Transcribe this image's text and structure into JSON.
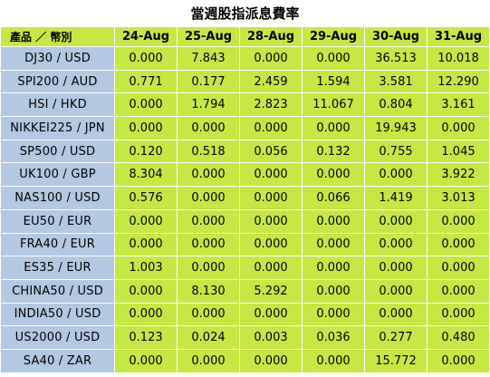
{
  "title": "當週股指派息費率",
  "table": {
    "product_header": "產品 ／ 幣別",
    "dates": [
      "24-Aug",
      "25-Aug",
      "28-Aug",
      "29-Aug",
      "30-Aug",
      "31-Aug"
    ],
    "rows": [
      {
        "product": "DJ30 / USD",
        "values": [
          "0.000",
          "7.843",
          "0.000",
          "0.000",
          "36.513",
          "10.018"
        ]
      },
      {
        "product": "SPI200 / AUD",
        "values": [
          "0.771",
          "0.177",
          "2.459",
          "1.594",
          "3.581",
          "12.290"
        ]
      },
      {
        "product": "HSI / HKD",
        "values": [
          "0.000",
          "1.794",
          "2.823",
          "11.067",
          "0.804",
          "3.161"
        ]
      },
      {
        "product": "NIKKEI225 / JPN",
        "values": [
          "0.000",
          "0.000",
          "0.000",
          "0.000",
          "19.943",
          "0.000"
        ]
      },
      {
        "product": "SP500 / USD",
        "values": [
          "0.120",
          "0.518",
          "0.056",
          "0.132",
          "0.755",
          "1.045"
        ]
      },
      {
        "product": "UK100 / GBP",
        "values": [
          "8.304",
          "0.000",
          "0.000",
          "0.000",
          "0.000",
          "3.922"
        ]
      },
      {
        "product": "NAS100 / USD",
        "values": [
          "0.576",
          "0.000",
          "0.000",
          "0.066",
          "1.419",
          "3.013"
        ]
      },
      {
        "product": "EU50 / EUR",
        "values": [
          "0.000",
          "0.000",
          "0.000",
          "0.000",
          "0.000",
          "0.000"
        ]
      },
      {
        "product": "FRA40 / EUR",
        "values": [
          "0.000",
          "0.000",
          "0.000",
          "0.000",
          "0.000",
          "0.000"
        ]
      },
      {
        "product": "ES35 / EUR",
        "values": [
          "1.003",
          "0.000",
          "0.000",
          "0.000",
          "0.000",
          "0.000"
        ]
      },
      {
        "product": "CHINA50 / USD",
        "values": [
          "0.000",
          "8.130",
          "5.292",
          "0.000",
          "0.000",
          "0.000"
        ]
      },
      {
        "product": "INDIA50 / USD",
        "values": [
          "0.000",
          "0.000",
          "0.000",
          "0.000",
          "0.000",
          "0.000"
        ]
      },
      {
        "product": "US2000 / USD",
        "values": [
          "0.123",
          "0.024",
          "0.003",
          "0.036",
          "0.277",
          "0.480"
        ]
      },
      {
        "product": "SA40 / ZAR",
        "values": [
          "0.000",
          "0.000",
          "0.000",
          "0.000",
          "15.772",
          "0.000"
        ]
      }
    ]
  },
  "colors": {
    "header_bg": "#c6e842",
    "value_bg": "#c6e842",
    "product_bg": "#b3c8e3"
  }
}
